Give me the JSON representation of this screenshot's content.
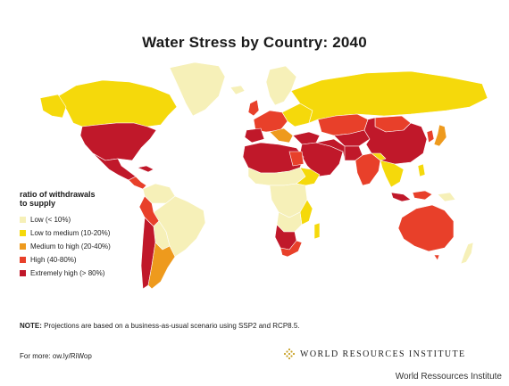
{
  "title": "Water Stress by Country: 2040",
  "legend": {
    "title_line1": "ratio of withdrawals",
    "title_line2": "to supply",
    "items": [
      {
        "label": "Low (< 10%)",
        "color": "#f6f0b8"
      },
      {
        "label": "Low to medium (10-20%)",
        "color": "#f5d90b"
      },
      {
        "label": "Medium to high (20-40%)",
        "color": "#ee9a1d"
      },
      {
        "label": "High (40-80%)",
        "color": "#e8402a"
      },
      {
        "label": "Extremely high (> 80%)",
        "color": "#c0182a"
      }
    ]
  },
  "note": {
    "label": "NOTE:",
    "text": " Projections are based on a business-as-usual scenario using SSP2 and RCP8.5."
  },
  "more": "For more: ow.ly/RiWop",
  "organization": "WORLD RESOURCES INSTITUTE",
  "caption": "World Ressources Institute",
  "colors": {
    "low": "#f6f0b8",
    "low_medium": "#f5d90b",
    "medium_high": "#ee9a1d",
    "high": "#e8402a",
    "extremely_high": "#c0182a",
    "border": "#ffffff"
  },
  "icons": [
    "wri-logo-icon"
  ]
}
